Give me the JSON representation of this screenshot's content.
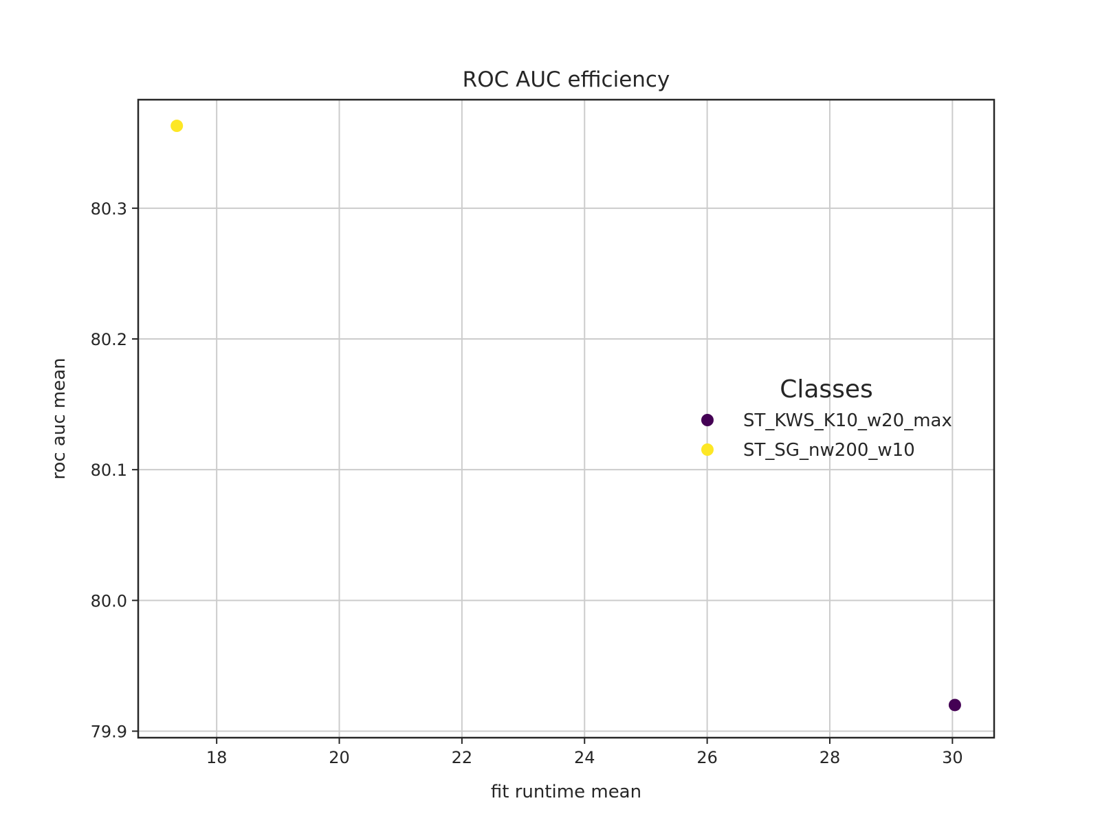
{
  "chart_data": {
    "type": "scatter",
    "title": "ROC AUC efficiency",
    "xlabel": "fit runtime mean",
    "ylabel": "roc auc mean",
    "xlim": [
      16.72,
      30.68
    ],
    "ylim": [
      79.895,
      80.383
    ],
    "xticks": [
      18,
      20,
      22,
      24,
      26,
      28,
      30
    ],
    "xtick_labels": [
      "18",
      "20",
      "22",
      "24",
      "26",
      "28",
      "30"
    ],
    "yticks": [
      79.9,
      80.0,
      80.1,
      80.2,
      80.3
    ],
    "ytick_labels": [
      "79.9",
      "80.0",
      "80.1",
      "80.2",
      "80.3"
    ],
    "grid": true,
    "legend": {
      "title": "Classes",
      "placement": "center-right"
    },
    "series": [
      {
        "name": "ST_KWS_K10_w20_max",
        "color": "#440154",
        "points": [
          {
            "x": 30.04,
            "y": 79.92
          }
        ]
      },
      {
        "name": "ST_SG_nw200_w10",
        "color": "#fde725",
        "points": [
          {
            "x": 17.35,
            "y": 80.363
          }
        ]
      }
    ]
  }
}
